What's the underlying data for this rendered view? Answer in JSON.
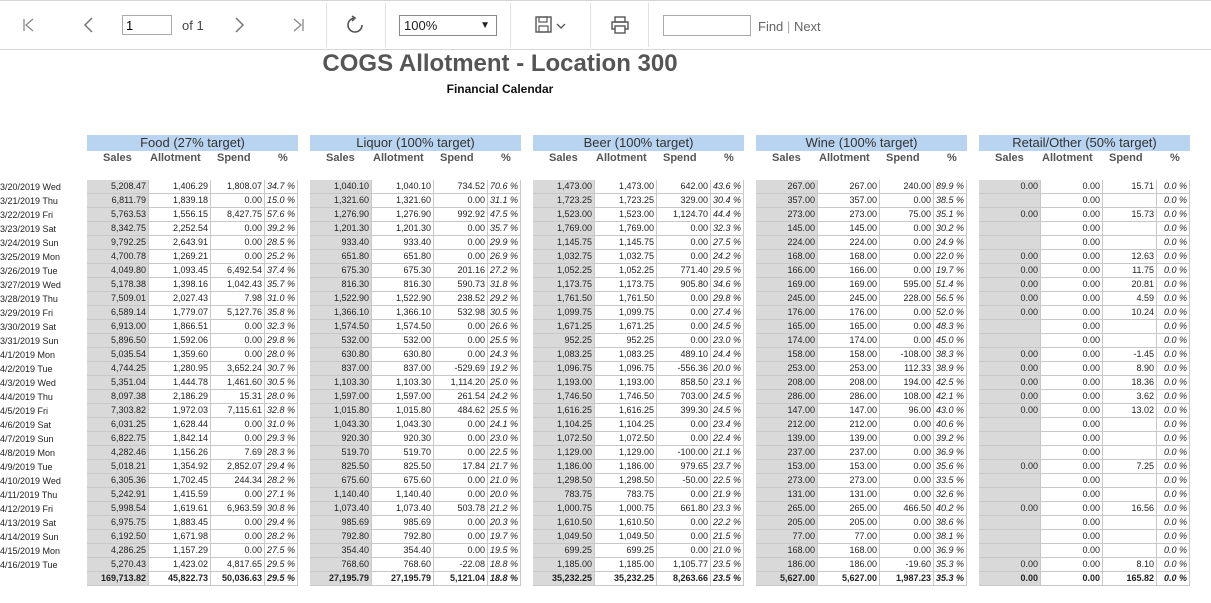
{
  "toolbar": {
    "page_value": "1",
    "of_label": "of 1",
    "zoom_value": "100%",
    "find_label": "Find",
    "next_label": "Next",
    "find_separator": "|",
    "icons": [
      "first-page-icon",
      "prev-page-icon",
      "next-page-icon",
      "last-page-icon",
      "refresh-icon",
      "save-icon",
      "print-icon"
    ]
  },
  "report": {
    "title": "COGS Allotment -  Location 300",
    "subtitle": "Financial Calendar"
  },
  "groups": [
    {
      "label": "Food (27% target)"
    },
    {
      "label": "Liquor (100% target)"
    },
    {
      "label": "Beer (100% target)"
    },
    {
      "label": "Wine (100% target)"
    },
    {
      "label": "Retail/Other (50% target)"
    }
  ],
  "columns": [
    "Sales",
    "Allotment",
    "Spend",
    "%"
  ],
  "rows": [
    {
      "date": "3/20/2019 Wed",
      "v": [
        [
          "5,208.47",
          "1,406.29",
          "1,808.07",
          "34.7 %"
        ],
        [
          "1,040.10",
          "1,040.10",
          "734.52",
          "70.6 %"
        ],
        [
          "1,473.00",
          "1,473.00",
          "642.00",
          "43.6 %"
        ],
        [
          "267.00",
          "267.00",
          "240.00",
          "89.9 %"
        ],
        [
          "0.00",
          "0.00",
          "15.71",
          "0.0 %"
        ]
      ]
    },
    {
      "date": "3/21/2019 Thu",
      "v": [
        [
          "6,811.79",
          "1,839.18",
          "0.00",
          "15.0 %"
        ],
        [
          "1,321.60",
          "1,321.60",
          "0.00",
          "31.1 %"
        ],
        [
          "1,723.25",
          "1,723.25",
          "329.00",
          "30.4 %"
        ],
        [
          "357.00",
          "357.00",
          "0.00",
          "38.5 %"
        ],
        [
          "",
          "0.00",
          "",
          "0.0 %"
        ]
      ]
    },
    {
      "date": "3/22/2019 Fri",
      "v": [
        [
          "5,763.53",
          "1,556.15",
          "8,427.75",
          "57.6 %"
        ],
        [
          "1,276.90",
          "1,276.90",
          "992.92",
          "47.5 %"
        ],
        [
          "1,523.00",
          "1,523.00",
          "1,124.70",
          "44.4 %"
        ],
        [
          "273.00",
          "273.00",
          "75.00",
          "35.1 %"
        ],
        [
          "0.00",
          "0.00",
          "15.73",
          "0.0 %"
        ]
      ]
    },
    {
      "date": "3/23/2019 Sat",
      "v": [
        [
          "8,342.75",
          "2,252.54",
          "0.00",
          "39.2 %"
        ],
        [
          "1,201.30",
          "1,201.30",
          "0.00",
          "35.7 %"
        ],
        [
          "1,769.00",
          "1,769.00",
          "0.00",
          "32.3 %"
        ],
        [
          "145.00",
          "145.00",
          "0.00",
          "30.2 %"
        ],
        [
          "",
          "0.00",
          "",
          "0.0 %"
        ]
      ]
    },
    {
      "date": "3/24/2019 Sun",
      "v": [
        [
          "9,792.25",
          "2,643.91",
          "0.00",
          "28.5 %"
        ],
        [
          "933.40",
          "933.40",
          "0.00",
          "29.9 %"
        ],
        [
          "1,145.75",
          "1,145.75",
          "0.00",
          "27.5 %"
        ],
        [
          "224.00",
          "224.00",
          "0.00",
          "24.9 %"
        ],
        [
          "",
          "0.00",
          "",
          "0.0 %"
        ]
      ]
    },
    {
      "date": "3/25/2019 Mon",
      "v": [
        [
          "4,700.78",
          "1,269.21",
          "0.00",
          "25.2 %"
        ],
        [
          "651.80",
          "651.80",
          "0.00",
          "26.9 %"
        ],
        [
          "1,032.75",
          "1,032.75",
          "0.00",
          "24.2 %"
        ],
        [
          "168.00",
          "168.00",
          "0.00",
          "22.0 %"
        ],
        [
          "0.00",
          "0.00",
          "12.63",
          "0.0 %"
        ]
      ]
    },
    {
      "date": "3/26/2019 Tue",
      "v": [
        [
          "4,049.80",
          "1,093.45",
          "6,492.54",
          "37.4 %"
        ],
        [
          "675.30",
          "675.30",
          "201.16",
          "27.2 %"
        ],
        [
          "1,052.25",
          "1,052.25",
          "771.40",
          "29.5 %"
        ],
        [
          "166.00",
          "166.00",
          "0.00",
          "19.7 %"
        ],
        [
          "0.00",
          "0.00",
          "11.75",
          "0.0 %"
        ]
      ]
    },
    {
      "date": "3/27/2019 Wed",
      "v": [
        [
          "5,178.38",
          "1,398.16",
          "1,042.43",
          "35.7 %"
        ],
        [
          "816.30",
          "816.30",
          "590.73",
          "31.8 %"
        ],
        [
          "1,173.75",
          "1,173.75",
          "905.80",
          "34.6 %"
        ],
        [
          "169.00",
          "169.00",
          "595.00",
          "51.4 %"
        ],
        [
          "0.00",
          "0.00",
          "20.81",
          "0.0 %"
        ]
      ]
    },
    {
      "date": "3/28/2019 Thu",
      "v": [
        [
          "7,509.01",
          "2,027.43",
          "7.98",
          "31.0 %"
        ],
        [
          "1,522.90",
          "1,522.90",
          "238.52",
          "29.2 %"
        ],
        [
          "1,761.50",
          "1,761.50",
          "0.00",
          "29.8 %"
        ],
        [
          "245.00",
          "245.00",
          "228.00",
          "56.5 %"
        ],
        [
          "0.00",
          "0.00",
          "4.59",
          "0.0 %"
        ]
      ]
    },
    {
      "date": "3/29/2019 Fri",
      "v": [
        [
          "6,589.14",
          "1,779.07",
          "5,127.76",
          "35.8 %"
        ],
        [
          "1,366.10",
          "1,366.10",
          "532.98",
          "30.5 %"
        ],
        [
          "1,099.75",
          "1,099.75",
          "0.00",
          "27.4 %"
        ],
        [
          "176.00",
          "176.00",
          "0.00",
          "52.0 %"
        ],
        [
          "0.00",
          "0.00",
          "10.24",
          "0.0 %"
        ]
      ]
    },
    {
      "date": "3/30/2019 Sat",
      "v": [
        [
          "6,913.00",
          "1,866.51",
          "0.00",
          "32.3 %"
        ],
        [
          "1,574.50",
          "1,574.50",
          "0.00",
          "26.6 %"
        ],
        [
          "1,671.25",
          "1,671.25",
          "0.00",
          "24.5 %"
        ],
        [
          "165.00",
          "165.00",
          "0.00",
          "48.3 %"
        ],
        [
          "",
          "0.00",
          "",
          "0.0 %"
        ]
      ]
    },
    {
      "date": "3/31/2019 Sun",
      "v": [
        [
          "5,896.50",
          "1,592.06",
          "0.00",
          "29.8 %"
        ],
        [
          "532.00",
          "532.00",
          "0.00",
          "25.5 %"
        ],
        [
          "952.25",
          "952.25",
          "0.00",
          "23.0 %"
        ],
        [
          "174.00",
          "174.00",
          "0.00",
          "45.0 %"
        ],
        [
          "",
          "0.00",
          "",
          "0.0 %"
        ]
      ]
    },
    {
      "date": "4/1/2019 Mon",
      "v": [
        [
          "5,035.54",
          "1,359.60",
          "0.00",
          "28.0 %"
        ],
        [
          "630.80",
          "630.80",
          "0.00",
          "24.3 %"
        ],
        [
          "1,083.25",
          "1,083.25",
          "489.10",
          "24.4 %"
        ],
        [
          "158.00",
          "158.00",
          "-108.00",
          "38.3 %"
        ],
        [
          "0.00",
          "0.00",
          "-1.45",
          "0.0 %"
        ]
      ]
    },
    {
      "date": "4/2/2019 Tue",
      "v": [
        [
          "4,744.25",
          "1,280.95",
          "3,652.24",
          "30.7 %"
        ],
        [
          "837.00",
          "837.00",
          "-529.69",
          "19.2 %"
        ],
        [
          "1,096.75",
          "1,096.75",
          "-556.36",
          "20.0 %"
        ],
        [
          "253.00",
          "253.00",
          "112.33",
          "38.9 %"
        ],
        [
          "0.00",
          "0.00",
          "8.90",
          "0.0 %"
        ]
      ]
    },
    {
      "date": "4/3/2019 Wed",
      "v": [
        [
          "5,351.04",
          "1,444.78",
          "1,461.60",
          "30.5 %"
        ],
        [
          "1,103.30",
          "1,103.30",
          "1,114.20",
          "25.0 %"
        ],
        [
          "1,193.00",
          "1,193.00",
          "858.50",
          "23.1 %"
        ],
        [
          "208.00",
          "208.00",
          "194.00",
          "42.5 %"
        ],
        [
          "0.00",
          "0.00",
          "18.36",
          "0.0 %"
        ]
      ]
    },
    {
      "date": "4/4/2019 Thu",
      "v": [
        [
          "8,097.38",
          "2,186.29",
          "15.31",
          "28.0 %"
        ],
        [
          "1,597.00",
          "1,597.00",
          "261.54",
          "24.2 %"
        ],
        [
          "1,746.50",
          "1,746.50",
          "703.00",
          "24.5 %"
        ],
        [
          "286.00",
          "286.00",
          "108.00",
          "42.1 %"
        ],
        [
          "0.00",
          "0.00",
          "3.62",
          "0.0 %"
        ]
      ]
    },
    {
      "date": "4/5/2019 Fri",
      "v": [
        [
          "7,303.82",
          "1,972.03",
          "7,115.61",
          "32.8 %"
        ],
        [
          "1,015.80",
          "1,015.80",
          "484.62",
          "25.5 %"
        ],
        [
          "1,616.25",
          "1,616.25",
          "399.30",
          "24.5 %"
        ],
        [
          "147.00",
          "147.00",
          "96.00",
          "43.0 %"
        ],
        [
          "0.00",
          "0.00",
          "13.02",
          "0.0 %"
        ]
      ]
    },
    {
      "date": "4/6/2019 Sat",
      "v": [
        [
          "6,031.25",
          "1,628.44",
          "0.00",
          "31.0 %"
        ],
        [
          "1,043.30",
          "1,043.30",
          "0.00",
          "24.1 %"
        ],
        [
          "1,104.25",
          "1,104.25",
          "0.00",
          "23.4 %"
        ],
        [
          "212.00",
          "212.00",
          "0.00",
          "40.6 %"
        ],
        [
          "",
          "0.00",
          "",
          "0.0 %"
        ]
      ]
    },
    {
      "date": "4/7/2019 Sun",
      "v": [
        [
          "6,822.75",
          "1,842.14",
          "0.00",
          "29.3 %"
        ],
        [
          "920.30",
          "920.30",
          "0.00",
          "23.0 %"
        ],
        [
          "1,072.50",
          "1,072.50",
          "0.00",
          "22.4 %"
        ],
        [
          "139.00",
          "139.00",
          "0.00",
          "39.2 %"
        ],
        [
          "",
          "0.00",
          "",
          "0.0 %"
        ]
      ]
    },
    {
      "date": "4/8/2019 Mon",
      "v": [
        [
          "4,282.46",
          "1,156.26",
          "7.69",
          "28.3 %"
        ],
        [
          "519.70",
          "519.70",
          "0.00",
          "22.5 %"
        ],
        [
          "1,129.00",
          "1,129.00",
          "-100.00",
          "21.1 %"
        ],
        [
          "237.00",
          "237.00",
          "0.00",
          "36.9 %"
        ],
        [
          "",
          "0.00",
          "",
          "0.0 %"
        ]
      ]
    },
    {
      "date": "4/9/2019 Tue",
      "v": [
        [
          "5,018.21",
          "1,354.92",
          "2,852.07",
          "29.4 %"
        ],
        [
          "825.50",
          "825.50",
          "17.84",
          "21.7 %"
        ],
        [
          "1,186.00",
          "1,186.00",
          "979.65",
          "23.7 %"
        ],
        [
          "153.00",
          "153.00",
          "0.00",
          "35.6 %"
        ],
        [
          "0.00",
          "0.00",
          "7.25",
          "0.0 %"
        ]
      ]
    },
    {
      "date": "4/10/2019 Wed",
      "v": [
        [
          "6,305.36",
          "1,702.45",
          "244.34",
          "28.2 %"
        ],
        [
          "675.60",
          "675.60",
          "0.00",
          "21.0 %"
        ],
        [
          "1,298.50",
          "1,298.50",
          "-50.00",
          "22.5 %"
        ],
        [
          "273.00",
          "273.00",
          "0.00",
          "33.5 %"
        ],
        [
          "",
          "0.00",
          "",
          "0.0 %"
        ]
      ]
    },
    {
      "date": "4/11/2019 Thu",
      "v": [
        [
          "5,242.91",
          "1,415.59",
          "0.00",
          "27.1 %"
        ],
        [
          "1,140.40",
          "1,140.40",
          "0.00",
          "20.0 %"
        ],
        [
          "783.75",
          "783.75",
          "0.00",
          "21.9 %"
        ],
        [
          "131.00",
          "131.00",
          "0.00",
          "32.6 %"
        ],
        [
          "",
          "0.00",
          "",
          "0.0 %"
        ]
      ]
    },
    {
      "date": "4/12/2019 Fri",
      "v": [
        [
          "5,998.54",
          "1,619.61",
          "6,963.59",
          "30.8 %"
        ],
        [
          "1,073.40",
          "1,073.40",
          "503.78",
          "21.2 %"
        ],
        [
          "1,000.75",
          "1,000.75",
          "661.80",
          "23.3 %"
        ],
        [
          "265.00",
          "265.00",
          "466.50",
          "40.2 %"
        ],
        [
          "0.00",
          "0.00",
          "16.56",
          "0.0 %"
        ]
      ]
    },
    {
      "date": "4/13/2019 Sat",
      "v": [
        [
          "6,975.75",
          "1,883.45",
          "0.00",
          "29.4 %"
        ],
        [
          "985.69",
          "985.69",
          "0.00",
          "20.3 %"
        ],
        [
          "1,610.50",
          "1,610.50",
          "0.00",
          "22.2 %"
        ],
        [
          "205.00",
          "205.00",
          "0.00",
          "38.6 %"
        ],
        [
          "",
          "0.00",
          "",
          "0.0 %"
        ]
      ]
    },
    {
      "date": "4/14/2019 Sun",
      "v": [
        [
          "6,192.50",
          "1,671.98",
          "0.00",
          "28.2 %"
        ],
        [
          "792.80",
          "792.80",
          "0.00",
          "19.7 %"
        ],
        [
          "1,049.50",
          "1,049.50",
          "0.00",
          "21.5 %"
        ],
        [
          "77.00",
          "77.00",
          "0.00",
          "38.1 %"
        ],
        [
          "",
          "0.00",
          "",
          "0.0 %"
        ]
      ]
    },
    {
      "date": "4/15/2019 Mon",
      "v": [
        [
          "4,286.25",
          "1,157.29",
          "0.00",
          "27.5 %"
        ],
        [
          "354.40",
          "354.40",
          "0.00",
          "19.5 %"
        ],
        [
          "699.25",
          "699.25",
          "0.00",
          "21.0 %"
        ],
        [
          "168.00",
          "168.00",
          "0.00",
          "36.9 %"
        ],
        [
          "",
          "0.00",
          "",
          "0.0 %"
        ]
      ]
    },
    {
      "date": "4/16/2019 Tue",
      "v": [
        [
          "5,270.43",
          "1,423.02",
          "4,817.65",
          "29.5 %"
        ],
        [
          "768.60",
          "768.60",
          "-22.08",
          "18.8 %"
        ],
        [
          "1,185.00",
          "1,185.00",
          "1,105.77",
          "23.5 %"
        ],
        [
          "186.00",
          "186.00",
          "-19.60",
          "35.3 %"
        ],
        [
          "0.00",
          "0.00",
          "8.10",
          "0.0 %"
        ]
      ]
    }
  ],
  "totals": [
    [
      "169,713.82",
      "45,822.73",
      "50,036.63",
      "29.5 %"
    ],
    [
      "27,195.79",
      "27,195.79",
      "5,121.04",
      "18.8 %"
    ],
    [
      "35,232.25",
      "35,232.25",
      "8,263.66",
      "23.5 %"
    ],
    [
      "5,627.00",
      "5,627.00",
      "1,987.23",
      "35.3 %"
    ],
    [
      "0.00",
      "0.00",
      "165.82",
      "0.0 %"
    ]
  ]
}
